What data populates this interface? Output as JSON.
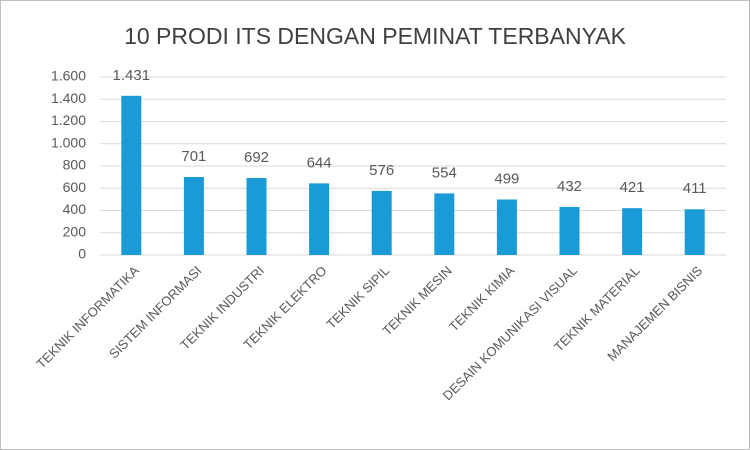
{
  "chart_data": {
    "type": "bar",
    "title": "10 PRODI ITS DENGAN PEMINAT TERBANYAK",
    "categories": [
      "TEKNIK INFORMATIKA",
      "SISTEM INFORMASI",
      "TEKNIK INDUSTRI",
      "TEKNIK ELEKTRO",
      "TEKNIK SIPIL",
      "TEKNIK MESIN",
      "TEKNIK KIMIA",
      "DESAIN KOMUNIKASI VISUAL",
      "TEKNIK MATERIAL",
      "MANAJEMEN BISNIS"
    ],
    "values": [
      1431,
      701,
      692,
      644,
      576,
      554,
      499,
      432,
      421,
      411
    ],
    "value_labels": [
      "1.431",
      "701",
      "692",
      "644",
      "576",
      "554",
      "499",
      "432",
      "421",
      "411"
    ],
    "color": "#1a9bd7",
    "ylim": [
      0,
      1600
    ],
    "yticks": [
      0,
      200,
      400,
      600,
      800,
      {
        "value": 1000,
        "label": "1.000"
      },
      {
        "value": 1200,
        "label": "1.200"
      },
      {
        "value": 1400,
        "label": "1.400"
      },
      {
        "value": 1600,
        "label": "1.600"
      }
    ],
    "grid": true
  }
}
